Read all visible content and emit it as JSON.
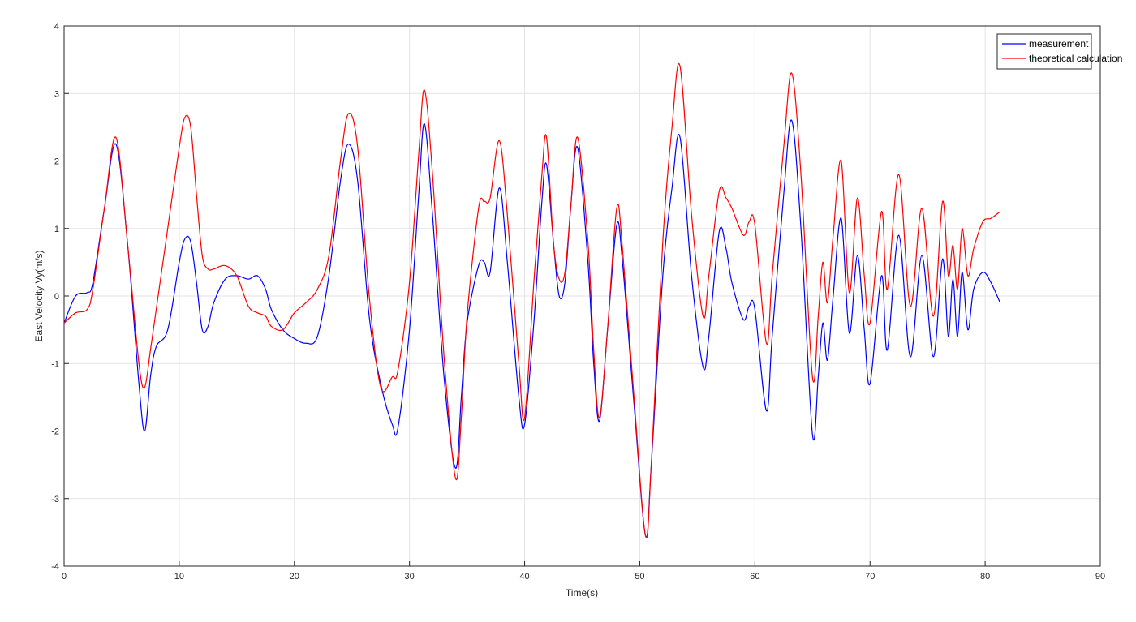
{
  "chart_data": {
    "type": "line",
    "xlabel": "Time(s)",
    "ylabel": "East Velocity Vy(m/s)",
    "x": [
      0,
      1,
      2,
      2.5,
      3.5,
      4.5,
      5.5,
      6.5,
      7,
      7.5,
      8,
      9,
      10,
      10.5,
      11,
      11.5,
      12,
      12.5,
      13,
      14,
      15,
      16,
      16.8,
      17.5,
      18,
      19,
      20,
      21,
      22,
      23,
      24,
      24.7,
      25.5,
      26.5,
      27.5,
      28.5,
      29,
      30,
      30.8,
      31.3,
      32,
      33,
      34,
      34.5,
      35,
      36,
      36.5,
      37,
      37.8,
      38.5,
      39.5,
      40,
      40.8,
      41.5,
      41.9,
      42.5,
      43,
      43.5,
      44,
      44.6,
      45.5,
      46,
      46.5,
      47.2,
      48,
      48.5,
      49.5,
      50.5,
      51,
      52,
      52.8,
      53.5,
      54.5,
      55.5,
      56,
      56.9,
      57.5,
      58,
      59,
      59.5,
      60,
      61,
      61.5,
      62.5,
      63.2,
      64,
      65,
      65.5,
      65.9,
      66.3,
      66.8,
      67.5,
      68.2,
      68.9,
      69.5,
      70,
      71,
      71.5,
      72.5,
      73.5,
      74.5,
      75.5,
      76.3,
      76.8,
      77.2,
      77.6,
      78,
      78.5,
      79,
      79.8,
      80.5,
      81.3
    ],
    "series": [
      {
        "name": "measurement",
        "color": "#0000ff",
        "values": [
          -0.4,
          0.0,
          0.05,
          0.2,
          1.3,
          2.25,
          0.8,
          -1.3,
          -2.0,
          -1.2,
          -0.75,
          -0.5,
          0.5,
          0.85,
          0.8,
          0.2,
          -0.5,
          -0.45,
          -0.1,
          0.25,
          0.3,
          0.25,
          0.3,
          0.1,
          -0.2,
          -0.5,
          -0.63,
          -0.7,
          -0.6,
          0.3,
          1.7,
          2.25,
          1.7,
          -0.3,
          -1.3,
          -1.9,
          -1.95,
          -0.5,
          1.5,
          2.55,
          1.2,
          -1.2,
          -2.55,
          -1.5,
          -0.4,
          0.45,
          0.5,
          0.35,
          1.6,
          0.5,
          -1.5,
          -1.9,
          -0.4,
          1.4,
          1.95,
          0.8,
          0.0,
          0.2,
          1.3,
          2.2,
          0.5,
          -1.0,
          -1.85,
          -0.5,
          1.05,
          0.5,
          -1.6,
          -3.55,
          -2.5,
          0.3,
          1.6,
          2.35,
          0.3,
          -1.05,
          -0.6,
          0.95,
          0.7,
          0.2,
          -0.35,
          -0.15,
          -0.2,
          -1.7,
          -0.6,
          1.5,
          2.6,
          1.0,
          -2.05,
          -1.2,
          -0.4,
          -0.95,
          0.0,
          1.15,
          -0.55,
          0.6,
          -0.5,
          -1.3,
          0.3,
          -0.8,
          0.9,
          -0.9,
          0.6,
          -0.9,
          0.55,
          -0.6,
          0.25,
          -0.6,
          0.35,
          -0.5,
          0.1,
          0.35,
          0.2,
          -0.1
        ]
      },
      {
        "name": "theoretical calculation",
        "color": "#ff0000",
        "values": [
          -0.4,
          -0.25,
          -0.2,
          0.1,
          1.3,
          2.35,
          0.8,
          -1.0,
          -1.35,
          -0.8,
          -0.2,
          1.0,
          2.2,
          2.65,
          2.5,
          1.5,
          0.6,
          0.4,
          0.4,
          0.45,
          0.3,
          -0.15,
          -0.25,
          -0.3,
          -0.45,
          -0.5,
          -0.25,
          -0.1,
          0.1,
          0.6,
          2.0,
          2.7,
          2.2,
          0.0,
          -1.35,
          -1.2,
          -1.1,
          0.2,
          2.1,
          3.05,
          1.8,
          -0.9,
          -2.7,
          -1.8,
          -0.3,
          1.3,
          1.4,
          1.45,
          2.3,
          1.2,
          -1.0,
          -1.8,
          0.2,
          1.8,
          2.35,
          0.8,
          0.25,
          0.35,
          1.3,
          2.35,
          0.8,
          -0.8,
          -1.8,
          -0.5,
          1.3,
          0.7,
          -1.5,
          -3.55,
          -2.5,
          0.8,
          2.5,
          3.4,
          1.2,
          -0.3,
          0.3,
          1.55,
          1.45,
          1.3,
          0.9,
          1.1,
          1.05,
          -0.7,
          0.3,
          2.2,
          3.3,
          1.8,
          -1.2,
          -0.3,
          0.5,
          -0.1,
          0.9,
          2.0,
          0.05,
          1.45,
          0.3,
          -0.4,
          1.25,
          0.1,
          1.8,
          -0.15,
          1.3,
          -0.3,
          1.4,
          0.3,
          0.75,
          0.1,
          1.0,
          0.3,
          0.7,
          1.1,
          1.15,
          1.25
        ]
      }
    ],
    "xlim": [
      0,
      90
    ],
    "xticks": [
      0,
      10,
      20,
      30,
      40,
      50,
      60,
      70,
      80,
      90
    ],
    "ylim": [
      -4,
      4
    ],
    "yticks": [
      -4,
      -3,
      -2,
      -1,
      0,
      1,
      2,
      3,
      4
    ],
    "grid": true,
    "legend": "top-right"
  }
}
